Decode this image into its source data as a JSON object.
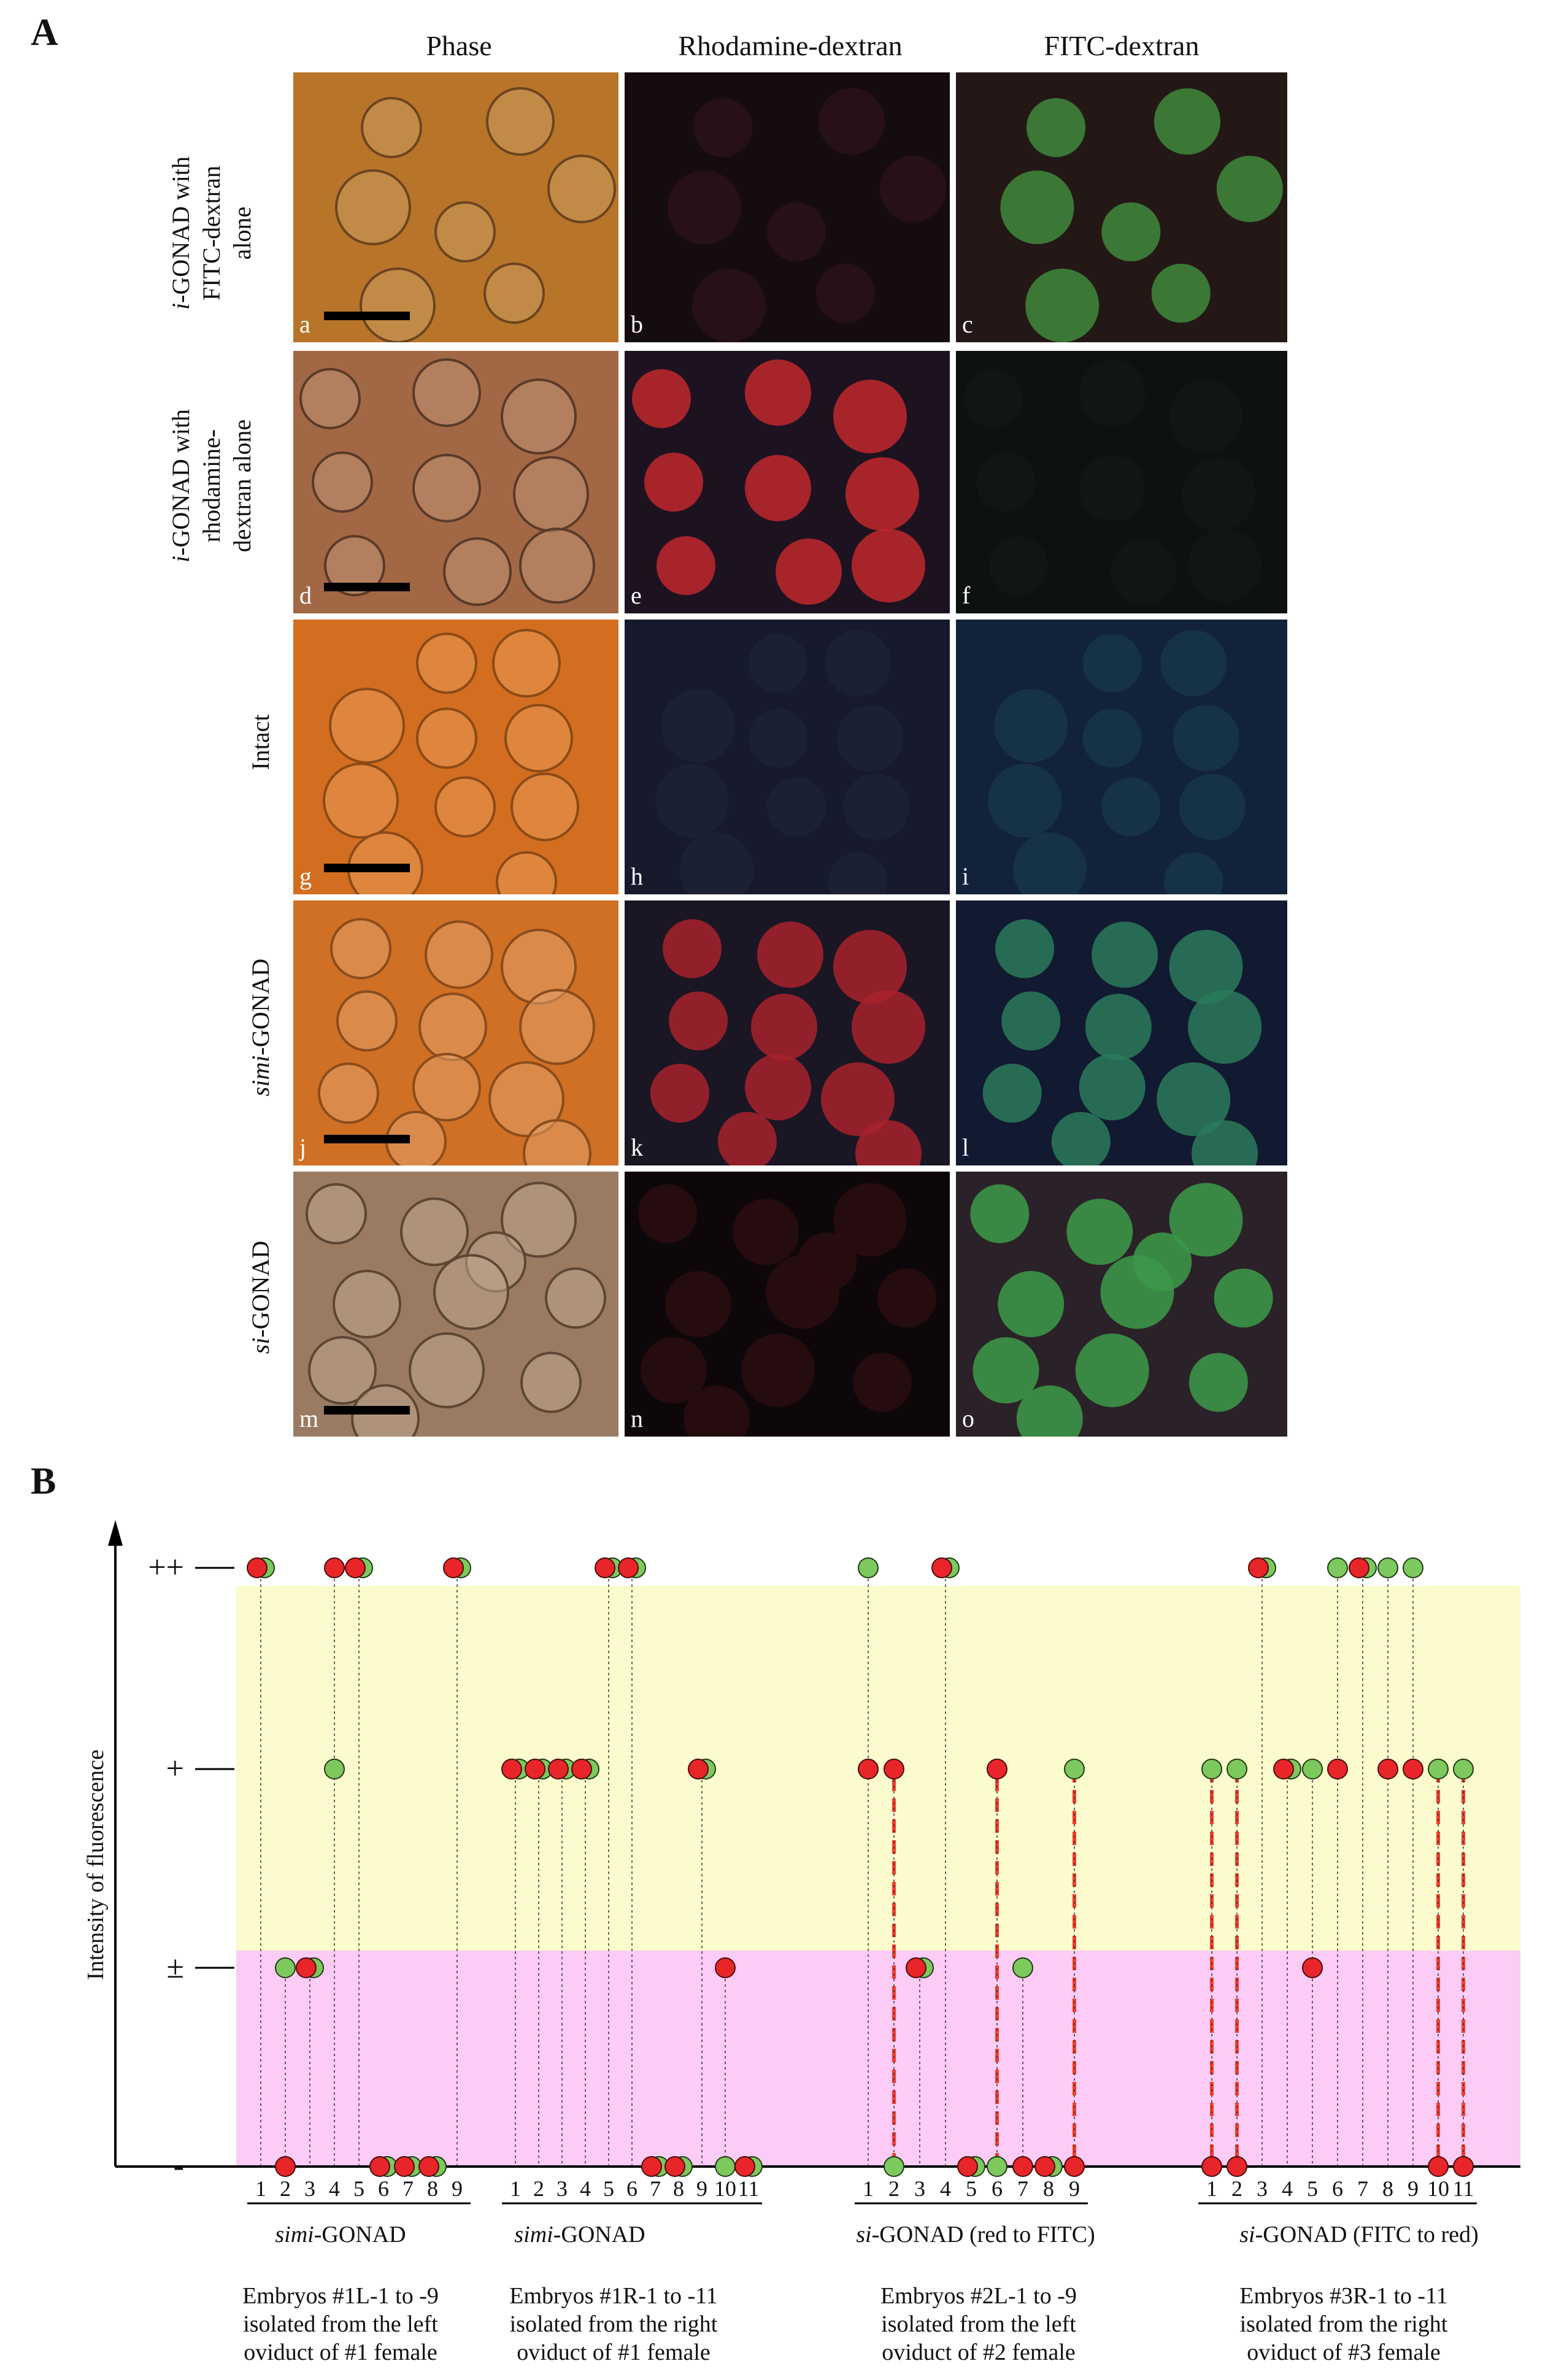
{
  "figure": {
    "panel_a_letter": "A",
    "panel_b_letter": "B",
    "columns": [
      "Phase",
      "Rhodamine-dextran",
      "FITC-dextran"
    ],
    "rows": [
      {
        "label_italic": "i",
        "label_rest": "-GONAD with FITC-dextran alone",
        "label_lines": [
          "-GONAD with",
          "FITC-dextran",
          "alone"
        ],
        "panels": [
          "a",
          "b",
          "c"
        ]
      },
      {
        "label_italic": "i",
        "label_rest": "-GONAD with rhodamine-dextran alone",
        "label_lines": [
          "-GONAD with",
          "rhodamine-",
          "dextran alone"
        ],
        "panels": [
          "d",
          "e",
          "f"
        ]
      },
      {
        "label_italic": "",
        "label_rest": "Intact",
        "label_lines": [
          "Intact"
        ],
        "panels": [
          "g",
          "h",
          "i"
        ]
      },
      {
        "label_italic": "simi",
        "label_rest": "-GONAD",
        "label_lines": [
          "-GONAD"
        ],
        "panels": [
          "j",
          "k",
          "l"
        ]
      },
      {
        "label_italic": "si",
        "label_rest": "-GONAD",
        "label_lines": [
          "-GONAD"
        ],
        "panels": [
          "m",
          "n",
          "o"
        ]
      }
    ]
  },
  "colors": {
    "green": "#7dc95e",
    "red": "#e8262a",
    "yellow_band": "#fcfbcd",
    "pink_band": "#fccbf6"
  },
  "chart_data": {
    "type": "scatter",
    "ylabel": "Intensity of fluorescence",
    "y_categories": [
      "-",
      "±",
      "+",
      "++"
    ],
    "groups": [
      {
        "title_italic": "simi",
        "title_rest": "-GONAD",
        "caption": [
          "Embryos #1L-1 to -9",
          "isolated from the left",
          "oviduct of #1 female"
        ],
        "embryos": [
          {
            "n": "1",
            "green": 3,
            "red": 3,
            "line": false
          },
          {
            "n": "2",
            "green": 1,
            "red": 0,
            "line": false
          },
          {
            "n": "3",
            "green": 1,
            "red": 1,
            "line": false
          },
          {
            "n": "4",
            "green": 2,
            "red": 3,
            "line": false
          },
          {
            "n": "5",
            "green": 3,
            "red": 3,
            "line": false
          },
          {
            "n": "6",
            "green": 0,
            "red": 0,
            "line": false
          },
          {
            "n": "7",
            "green": 0,
            "red": 0,
            "line": false
          },
          {
            "n": "8",
            "green": 0,
            "red": 0,
            "line": false
          },
          {
            "n": "9",
            "green": 3,
            "red": 3,
            "line": false
          }
        ]
      },
      {
        "title_italic": "simi",
        "title_rest": "-GONAD",
        "caption": [
          "Embryos #1R-1 to -11",
          "isolated from the right",
          "oviduct of #1 female"
        ],
        "embryos": [
          {
            "n": "1",
            "green": 2,
            "red": 2,
            "line": false
          },
          {
            "n": "2",
            "green": 2,
            "red": 2,
            "line": false
          },
          {
            "n": "3",
            "green": 2,
            "red": 2,
            "line": false
          },
          {
            "n": "4",
            "green": 2,
            "red": 2,
            "line": false
          },
          {
            "n": "5",
            "green": 3,
            "red": 3,
            "line": false
          },
          {
            "n": "6",
            "green": 3,
            "red": 3,
            "line": false
          },
          {
            "n": "7",
            "green": 0,
            "red": 0,
            "line": false
          },
          {
            "n": "8",
            "green": 0,
            "red": 0,
            "line": false
          },
          {
            "n": "9",
            "green": 2,
            "red": 2,
            "line": false
          },
          {
            "n": "10",
            "green": 0,
            "red": 1,
            "line": false
          },
          {
            "n": "11",
            "green": 0,
            "red": 0,
            "line": false
          }
        ]
      },
      {
        "title_italic": "si",
        "title_rest": "-GONAD (red to FITC)",
        "caption": [
          "Embryos #2L-1 to -9",
          "isolated from the left",
          "oviduct of #2 female"
        ],
        "embryos": [
          {
            "n": "1",
            "green": 3,
            "red": 2,
            "line": false
          },
          {
            "n": "2",
            "green": 0,
            "red": 2,
            "line": true
          },
          {
            "n": "3",
            "green": 1,
            "red": 1,
            "line": false
          },
          {
            "n": "4",
            "green": 3,
            "red": 3,
            "line": false
          },
          {
            "n": "5",
            "green": 0,
            "red": 0,
            "line": false
          },
          {
            "n": "6",
            "green": 0,
            "red": 2,
            "line": true
          },
          {
            "n": "7",
            "green": 1,
            "red": 0,
            "line": false
          },
          {
            "n": "8",
            "green": 0,
            "red": 0,
            "line": false
          },
          {
            "n": "9",
            "green": 2,
            "red": 0,
            "line": true
          }
        ]
      },
      {
        "title_italic": "si",
        "title_rest": "-GONAD (FITC to red)",
        "caption": [
          "Embryos #3R-1 to -11",
          "isolated from the right",
          "oviduct of #3 female"
        ],
        "embryos": [
          {
            "n": "1",
            "green": 2,
            "red": 0,
            "line": true
          },
          {
            "n": "2",
            "green": 2,
            "red": 0,
            "line": true
          },
          {
            "n": "3",
            "green": 3,
            "red": 3,
            "line": false
          },
          {
            "n": "4",
            "green": 2,
            "red": 2,
            "line": false
          },
          {
            "n": "5",
            "green": 2,
            "red": 1,
            "line": false
          },
          {
            "n": "6",
            "green": 3,
            "red": 2,
            "line": false
          },
          {
            "n": "7",
            "green": 3,
            "red": 3,
            "line": false
          },
          {
            "n": "8",
            "green": 3,
            "red": 2,
            "line": false
          },
          {
            "n": "9",
            "green": 3,
            "red": 2,
            "line": false
          },
          {
            "n": "10",
            "green": 2,
            "red": 0,
            "line": true
          },
          {
            "n": "11",
            "green": 2,
            "red": 0,
            "line": true
          }
        ]
      }
    ]
  }
}
